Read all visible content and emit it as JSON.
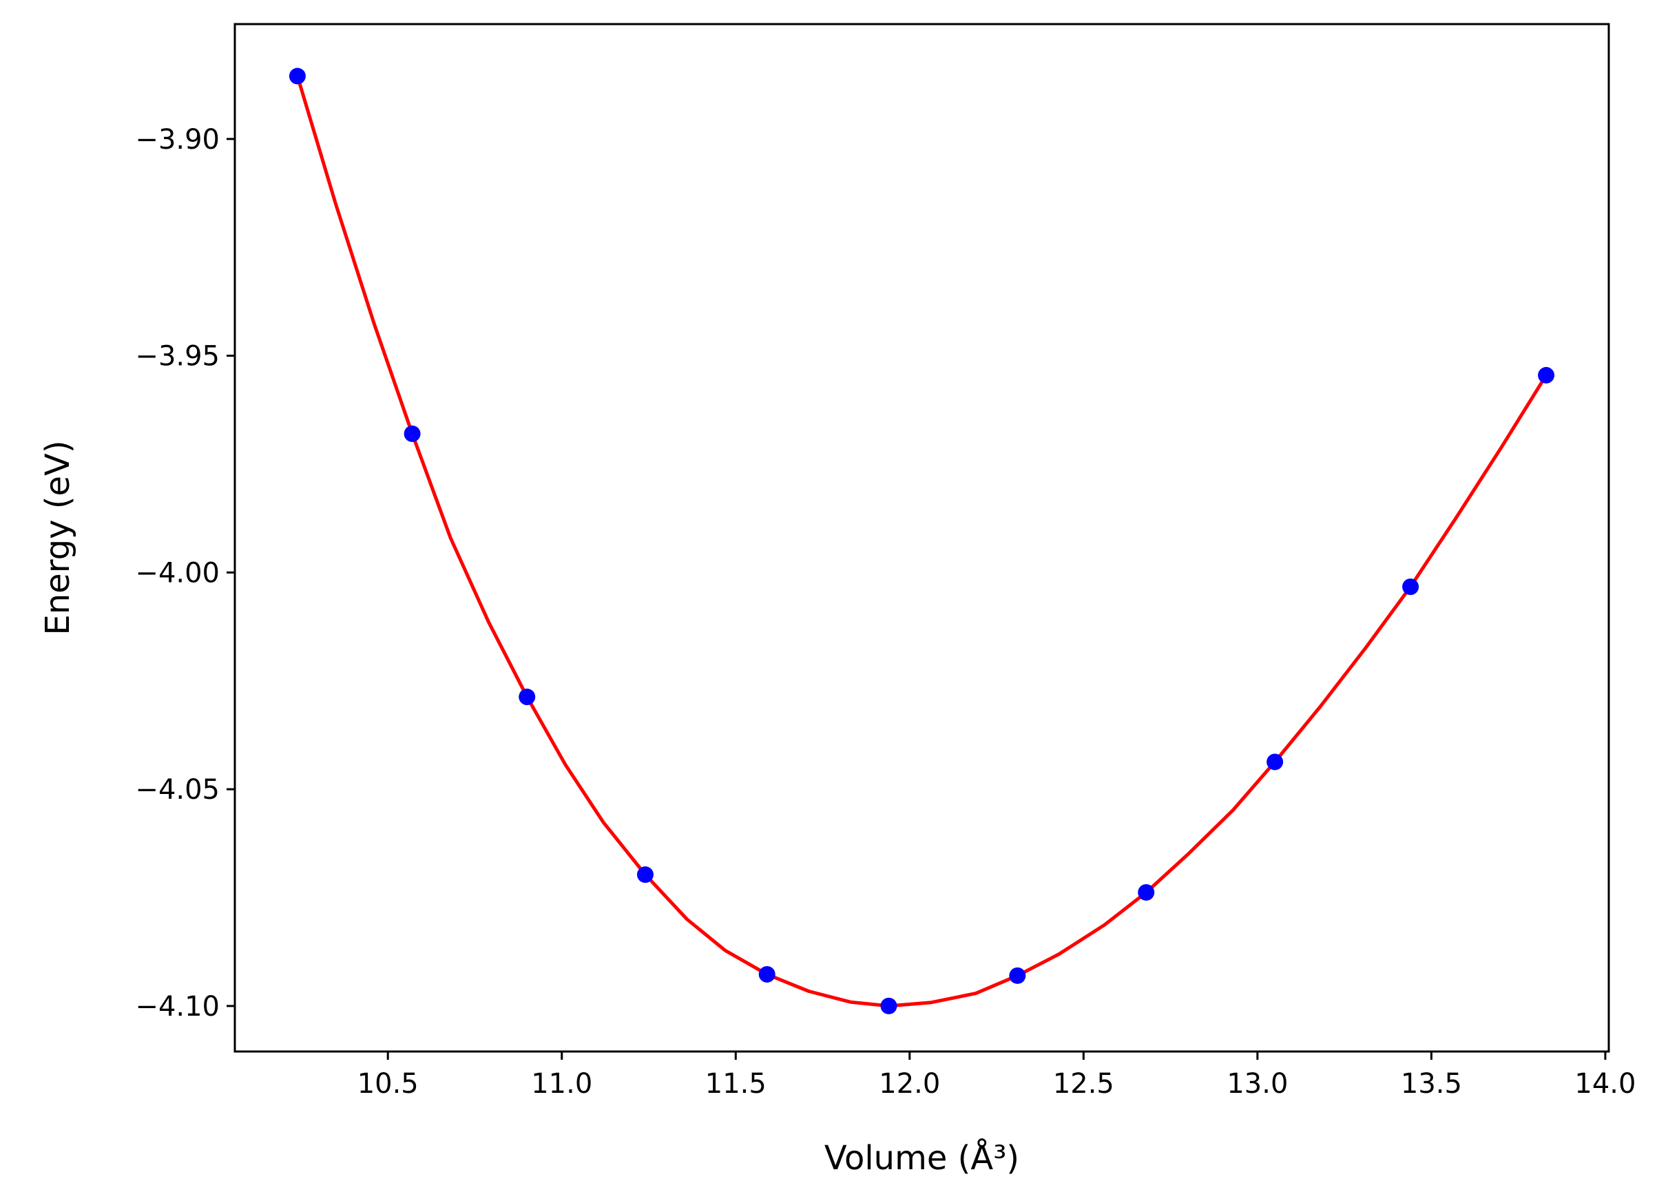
{
  "chart_data": {
    "type": "scatter",
    "title": "",
    "xlabel": "Volume (Å³)",
    "ylabel": "Energy (eV)",
    "xlim": [
      10.06,
      14.01
    ],
    "ylim": [
      -4.1105,
      -3.8735
    ],
    "x_ticks": [
      {
        "value": 10.5,
        "label": "10.5"
      },
      {
        "value": 11.0,
        "label": "11.0"
      },
      {
        "value": 11.5,
        "label": "11.5"
      },
      {
        "value": 12.0,
        "label": "12.0"
      },
      {
        "value": 12.5,
        "label": "12.5"
      },
      {
        "value": 13.0,
        "label": "13.0"
      },
      {
        "value": 13.5,
        "label": "13.5"
      },
      {
        "value": 14.0,
        "label": "14.0"
      }
    ],
    "y_ticks": [
      {
        "value": -3.9,
        "label": "−3.90"
      },
      {
        "value": -3.95,
        "label": "−3.95"
      },
      {
        "value": -4.0,
        "label": "−4.00"
      },
      {
        "value": -4.05,
        "label": "−4.05"
      },
      {
        "value": -4.1,
        "label": "−4.10"
      }
    ],
    "grid": false,
    "series": [
      {
        "kind": "points",
        "color": "#0000ff",
        "x": [
          10.24,
          10.57,
          10.9,
          11.24,
          11.59,
          11.94,
          12.31,
          12.68,
          13.05,
          13.44,
          13.83
        ],
        "y": [
          -3.8855,
          -3.968,
          -4.0287,
          -4.0697,
          -4.0927,
          -4.1,
          -4.093,
          -4.0738,
          -4.0437,
          -4.0033,
          -3.9545
        ]
      },
      {
        "kind": "fit-curve",
        "color": "#ff0000",
        "x": [
          10.24,
          10.35,
          10.46,
          10.57,
          10.68,
          10.79,
          10.9,
          11.01,
          11.12,
          11.24,
          11.36,
          11.47,
          11.59,
          11.71,
          11.83,
          11.94,
          12.06,
          12.19,
          12.31,
          12.43,
          12.56,
          12.68,
          12.8,
          12.93,
          13.05,
          13.18,
          13.31,
          13.44,
          13.57,
          13.7,
          13.83
        ],
        "y": [
          -3.8855,
          -3.915,
          -3.9425,
          -3.968,
          -3.992,
          -4.0115,
          -4.0287,
          -4.0443,
          -4.0577,
          -4.0697,
          -4.08,
          -4.0872,
          -4.0927,
          -4.0966,
          -4.0991,
          -4.1,
          -4.0992,
          -4.0971,
          -4.093,
          -4.088,
          -4.0813,
          -4.0738,
          -4.065,
          -4.0548,
          -4.0437,
          -4.031,
          -4.0175,
          -4.0033,
          -3.9875,
          -3.9713,
          -3.9545
        ]
      }
    ]
  }
}
